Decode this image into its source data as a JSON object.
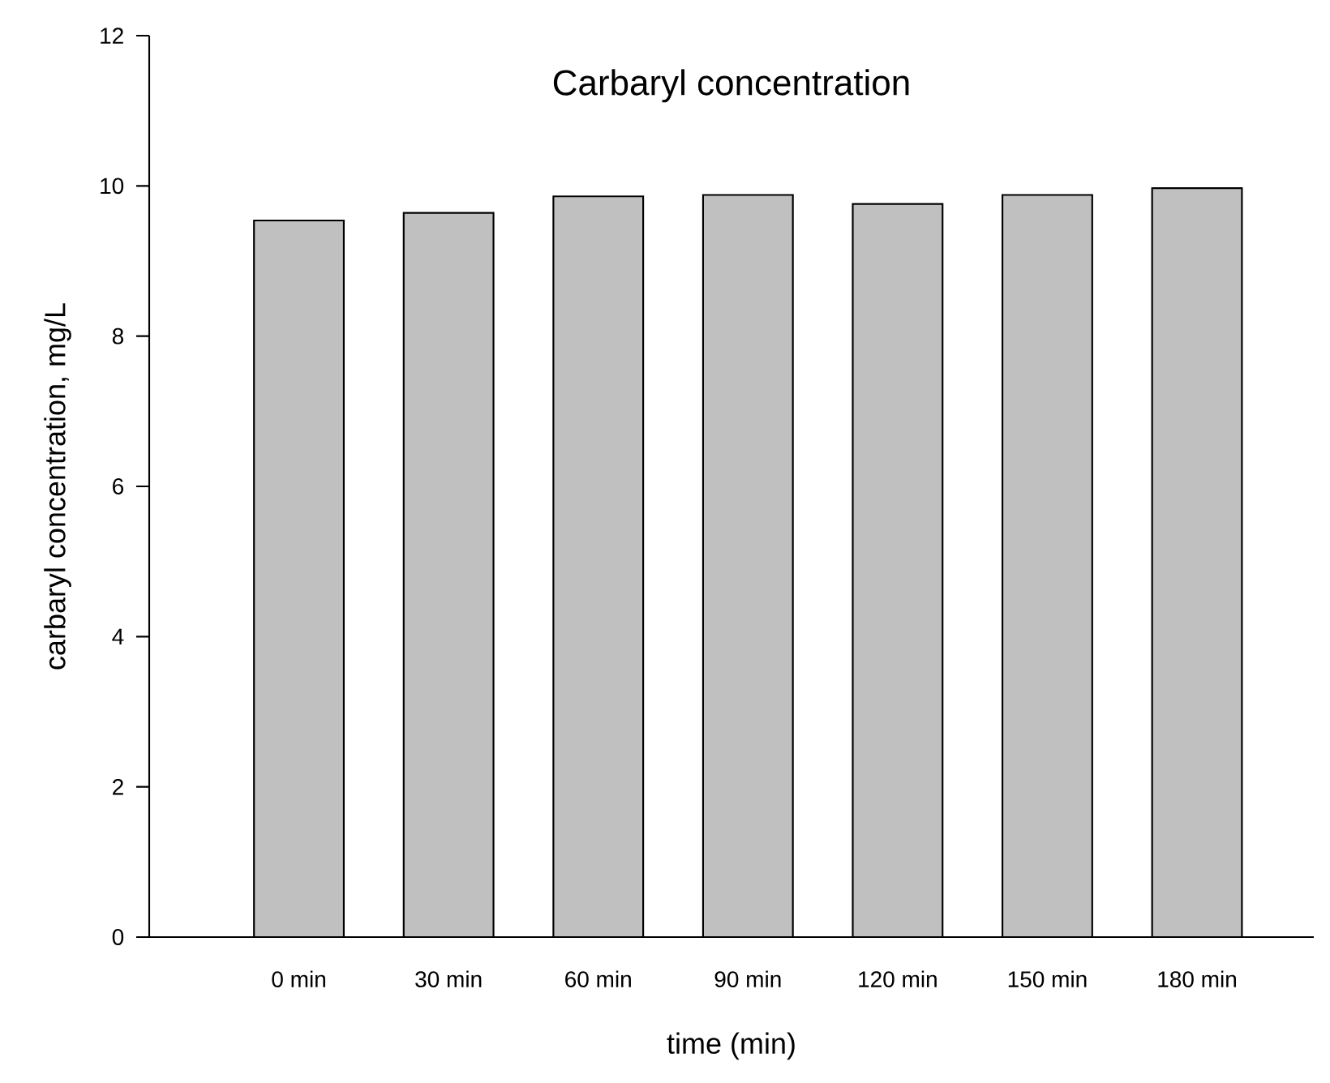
{
  "chart_data": {
    "type": "bar",
    "title": "Carbaryl concentration",
    "xlabel": "time (min)",
    "ylabel": "carbaryl concentration, mg/L",
    "categories": [
      "0 min",
      "30 min",
      "60 min",
      "90 min",
      "120 min",
      "150 min",
      "180 min"
    ],
    "values": [
      9.54,
      9.64,
      9.86,
      9.88,
      9.76,
      9.88,
      9.97
    ],
    "color": "#c0c0c0",
    "ylim": [
      0,
      12
    ],
    "yticks": [
      0,
      2,
      4,
      6,
      8,
      10,
      12
    ]
  }
}
